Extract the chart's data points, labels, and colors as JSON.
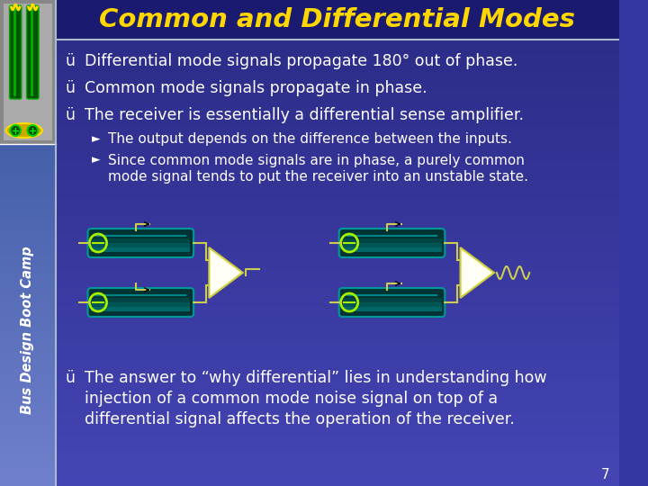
{
  "title": "Common and Differential Modes",
  "title_color": "#FFD700",
  "bg_color": "#3535A0",
  "bg_gradient_top": "#2A2A85",
  "bg_gradient_bot": "#4545B5",
  "left_bar_top_color": "#888888",
  "left_bar_bot_color": "#6080C0",
  "text_color": "#FFFFFF",
  "slide_number": "7",
  "bullet1": "Differential mode signals propagate 180° out of phase.",
  "bullet2": "Common mode signals propagate in phase.",
  "bullet3": "The receiver is essentially a differential sense amplifier.",
  "sub1": "The output depends on the difference between the inputs.",
  "sub2a": "Since common mode signals are in phase, a purely common",
  "sub2b": "mode signal tends to put the receiver into an unstable state.",
  "bullet4a": "The answer to “why differential” lies in understanding how",
  "bullet4b": "injection of a common mode noise signal on top of a",
  "bullet4c": "differential signal affects the operation of the receiver.",
  "check_color": "#FFFFFF",
  "tube_color_dark": "#004444",
  "tube_color_mid": "#006666",
  "tube_color_light": "#00AAAA",
  "tube_edge": "#CCDD00",
  "circle_color": "#AAEE00",
  "triangle_fill": "#FFFFF0",
  "triangle_edge": "#CCCC60",
  "signal_color": "#CCCC60",
  "signal_dark": "#222200",
  "wave_color": "#CCCC60",
  "sidebar_top_bg": "#999999",
  "sidebar_bot_bg": "#5570AA",
  "sidebar_text_color": "#FFFFFF"
}
